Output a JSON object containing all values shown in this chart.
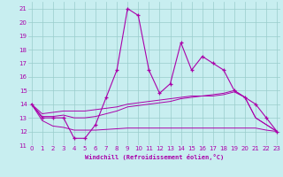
{
  "xlabel": "Windchill (Refroidissement éolien,°C)",
  "bg_color": "#c8eef0",
  "grid_color": "#99cccc",
  "line_color": "#aa00aa",
  "hours": [
    0,
    1,
    2,
    3,
    4,
    5,
    6,
    7,
    8,
    9,
    10,
    11,
    12,
    13,
    14,
    15,
    16,
    17,
    18,
    19,
    20,
    21,
    22,
    23
  ],
  "windchill": [
    14,
    13,
    13,
    13,
    11.5,
    11.5,
    12.5,
    14.5,
    16.5,
    21,
    20.5,
    16.5,
    14.8,
    15.5,
    18.5,
    16.5,
    17.5,
    17,
    16.5,
    15,
    14.5,
    14,
    13,
    12
  ],
  "temp_line1": [
    14,
    13.1,
    13.1,
    13.2,
    13.0,
    13.0,
    13.1,
    13.3,
    13.5,
    13.8,
    13.9,
    14.0,
    14.1,
    14.2,
    14.4,
    14.5,
    14.6,
    14.6,
    14.7,
    14.9,
    14.5,
    13.0,
    12.5,
    12
  ],
  "temp_line2": [
    14,
    13.3,
    13.4,
    13.5,
    13.5,
    13.5,
    13.6,
    13.7,
    13.8,
    14.0,
    14.1,
    14.2,
    14.3,
    14.4,
    14.5,
    14.6,
    14.6,
    14.7,
    14.8,
    15.0,
    14.5,
    13.0,
    12.5,
    12
  ],
  "temp_line3": [
    14,
    12.8,
    12.4,
    12.3,
    12.1,
    12.1,
    12.1,
    12.15,
    12.2,
    12.25,
    12.25,
    12.25,
    12.25,
    12.25,
    12.25,
    12.25,
    12.25,
    12.25,
    12.25,
    12.25,
    12.25,
    12.25,
    12.1,
    12
  ],
  "ylim": [
    11,
    21.5
  ],
  "yticks": [
    11,
    12,
    13,
    14,
    15,
    16,
    17,
    18,
    19,
    20,
    21
  ],
  "xlim": [
    -0.3,
    23.3
  ],
  "label_fontsize": 5.0,
  "tick_fontsize": 5.0
}
